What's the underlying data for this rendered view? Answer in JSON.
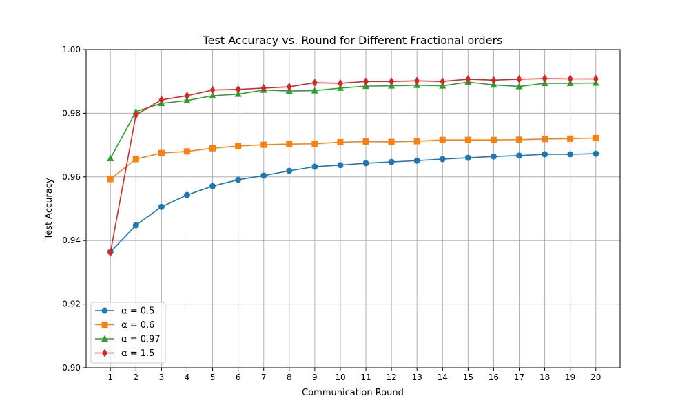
{
  "chart_data": {
    "type": "line",
    "title": "Test Accuracy vs. Round for Different Fractional orders",
    "xlabel": "Communication Round",
    "ylabel": "Test Accuracy",
    "x": [
      1,
      2,
      3,
      4,
      5,
      6,
      7,
      8,
      9,
      10,
      11,
      12,
      13,
      14,
      15,
      16,
      17,
      18,
      19,
      20
    ],
    "xlim": [
      0.05,
      20.95
    ],
    "ylim": [
      0.9,
      1.0
    ],
    "yticks": [
      0.9,
      0.92,
      0.94,
      0.96,
      0.98,
      1.0
    ],
    "ytick_labels": [
      "0.90",
      "0.92",
      "0.94",
      "0.96",
      "0.98",
      "1.00"
    ],
    "grid": true,
    "legend_position": "lower-left",
    "series": [
      {
        "name": "α = 0.5",
        "color": "#1f77b4",
        "marker": "circle",
        "values": [
          0.9364,
          0.9448,
          0.9506,
          0.9543,
          0.9571,
          0.9591,
          0.9604,
          0.9619,
          0.9632,
          0.9637,
          0.9643,
          0.9647,
          0.9651,
          0.9656,
          0.966,
          0.9664,
          0.9667,
          0.9671,
          0.9671,
          0.9673
        ]
      },
      {
        "name": "α = 0.6",
        "color": "#ff7f0e",
        "marker": "square",
        "values": [
          0.9593,
          0.9656,
          0.9675,
          0.968,
          0.969,
          0.9697,
          0.9701,
          0.9703,
          0.9704,
          0.9709,
          0.9711,
          0.971,
          0.9712,
          0.9716,
          0.9716,
          0.9716,
          0.9717,
          0.9719,
          0.972,
          0.9722
        ]
      },
      {
        "name": "α = 0.97",
        "color": "#2ca02c",
        "marker": "triangle",
        "values": [
          0.9658,
          0.9805,
          0.9831,
          0.984,
          0.9855,
          0.986,
          0.9873,
          0.987,
          0.9871,
          0.9879,
          0.9885,
          0.9886,
          0.9888,
          0.9886,
          0.9898,
          0.9889,
          0.9884,
          0.9894,
          0.9894,
          0.9895
        ]
      },
      {
        "name": "α = 1.5",
        "color": "#d62728",
        "marker": "diamond",
        "values": [
          0.9362,
          0.9795,
          0.9842,
          0.9855,
          0.9873,
          0.9875,
          0.9879,
          0.9883,
          0.9896,
          0.9894,
          0.99,
          0.99,
          0.9902,
          0.99,
          0.9907,
          0.9904,
          0.9907,
          0.9909,
          0.9908,
          0.9908
        ]
      }
    ]
  }
}
